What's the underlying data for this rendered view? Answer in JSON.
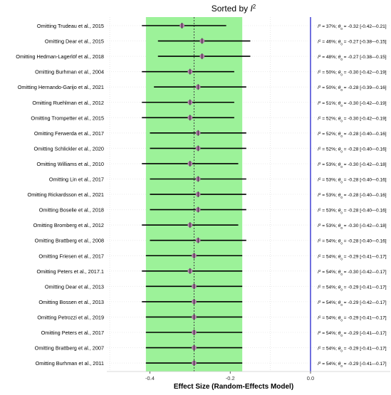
{
  "chart_data": {
    "type": "forest",
    "title": "Sorted by",
    "title_symbol": "I",
    "title_superscript": "2",
    "xlabel": "Effect Size (Random-Effects Model)",
    "xlim": [
      -0.5,
      0.02
    ],
    "xticks": [
      -0.4,
      -0.2,
      0.0
    ],
    "xtick_labels": [
      "-0.4",
      "-0.2",
      "0.0"
    ],
    "pooled_estimate": -0.29,
    "pooled_ci": [
      -0.41,
      -0.17
    ],
    "reference_line": 0.0,
    "colors": {
      "ci_band": "#9cf299",
      "reference_line": "#2222cc",
      "pooled_line": "#444444",
      "point": "#b07aa8",
      "whisker": "#000000"
    },
    "rows": [
      {
        "label": "Omitting Trudeau et al., 2015",
        "i2": "37%",
        "est": -0.32,
        "lo": -0.42,
        "hi": -0.21,
        "est_text": "-0.32 [-0.42–-0.21]"
      },
      {
        "label": "Omitting Dear et al., 2015",
        "i2": "46%",
        "est": -0.27,
        "lo": -0.38,
        "hi": -0.15,
        "est_text": "-0.27 [-0.38–-0.15]"
      },
      {
        "label": "Omitting Hedman-Lagerlöf et al., 2018",
        "i2": "48%",
        "est": -0.27,
        "lo": -0.38,
        "hi": -0.15,
        "est_text": "-0.27 [-0.38–-0.15]"
      },
      {
        "label": "Omitting Burhman et al., 2004",
        "i2": "50%",
        "est": -0.3,
        "lo": -0.42,
        "hi": -0.19,
        "est_text": "-0.30 [-0.42–-0.19]"
      },
      {
        "label": "Omitting Hernando-Garijo et al., 2021",
        "i2": "50%",
        "est": -0.28,
        "lo": -0.39,
        "hi": -0.16,
        "est_text": "-0.28 [-0.39–-0.16]"
      },
      {
        "label": "Omitting Ruehlman et al., 2012",
        "i2": "51%",
        "est": -0.3,
        "lo": -0.42,
        "hi": -0.19,
        "est_text": "-0.30 [-0.42–-0.19]"
      },
      {
        "label": "Omitting Trompetter et al., 2015",
        "i2": "52%",
        "est": -0.3,
        "lo": -0.42,
        "hi": -0.19,
        "est_text": "-0.30 [-0.42–-0.19]"
      },
      {
        "label": "Omitting Ferwerda et al., 2017",
        "i2": "52%",
        "est": -0.28,
        "lo": -0.4,
        "hi": -0.16,
        "est_text": "-0.28 [-0.40–-0.16]"
      },
      {
        "label": "Omitting Schlickler et al., 2020",
        "i2": "52%",
        "est": -0.28,
        "lo": -0.4,
        "hi": -0.16,
        "est_text": "-0.28 [-0.40–-0.16]"
      },
      {
        "label": "Omitting Williams et al., 2010",
        "i2": "53%",
        "est": -0.3,
        "lo": -0.42,
        "hi": -0.18,
        "est_text": "-0.30 [-0.42–-0.18]"
      },
      {
        "label": "Omitting Lin et al., 2017",
        "i2": "53%",
        "est": -0.28,
        "lo": -0.4,
        "hi": -0.16,
        "est_text": "-0.28 [-0.40–-0.16]"
      },
      {
        "label": "Omitting Rickardsson et al., 2021",
        "i2": "53%",
        "est": -0.28,
        "lo": -0.4,
        "hi": -0.16,
        "est_text": "-0.28 [-0.40–-0.16]"
      },
      {
        "label": "Omitting Boselie et al., 2018",
        "i2": "53%",
        "est": -0.28,
        "lo": -0.4,
        "hi": -0.16,
        "est_text": "-0.28 [-0.40–-0.16]"
      },
      {
        "label": "Omitting Bromberg et al., 2012",
        "i2": "53%",
        "est": -0.3,
        "lo": -0.42,
        "hi": -0.18,
        "est_text": "-0.30 [-0.42–-0.18]"
      },
      {
        "label": "Omitting Brattberg et al., 2008",
        "i2": "54%",
        "est": -0.28,
        "lo": -0.4,
        "hi": -0.16,
        "est_text": "-0.28 [-0.40–-0.16]"
      },
      {
        "label": "Omitting Friesen et al., 2017",
        "i2": "54%",
        "est": -0.29,
        "lo": -0.41,
        "hi": -0.17,
        "est_text": "-0.29 [-0.41–-0.17]"
      },
      {
        "label": "Omitting Peters et al., 2017.1",
        "i2": "54%",
        "est": -0.3,
        "lo": -0.42,
        "hi": -0.17,
        "est_text": "-0.30 [-0.42–-0.17]"
      },
      {
        "label": "Omitting Dear et al., 2013",
        "i2": "54%",
        "est": -0.29,
        "lo": -0.41,
        "hi": -0.17,
        "est_text": "-0.29 [-0.41–-0.17]"
      },
      {
        "label": "Omitting Bossen et al., 2013",
        "i2": "54%",
        "est": -0.29,
        "lo": -0.42,
        "hi": -0.17,
        "est_text": "-0.29 [-0.42–-0.17]"
      },
      {
        "label": "Omitting Petrozzi et al., 2019",
        "i2": "54%",
        "est": -0.29,
        "lo": -0.41,
        "hi": -0.17,
        "est_text": "-0.29 [-0.41–-0.17]"
      },
      {
        "label": "Omitting Peters et al., 2017",
        "i2": "54%",
        "est": -0.29,
        "lo": -0.41,
        "hi": -0.17,
        "est_text": "-0.29 [-0.41–-0.17]"
      },
      {
        "label": "Omitting Brattberg et al., 2007",
        "i2": "54%",
        "est": -0.29,
        "lo": -0.41,
        "hi": -0.17,
        "est_text": "-0.29 [-0.41–-0.17]"
      },
      {
        "label": "Omitting Burhman et al., 2011",
        "i2": "54%",
        "est": -0.29,
        "lo": -0.41,
        "hi": -0.17,
        "est_text": "-0.29 [-0.41–-0.17]"
      }
    ],
    "annotation_labels": {
      "i2_symbol": "I",
      "i2_sup": "2",
      "theta_symbol": "θ",
      "theta_sub": "0",
      "sep": "; "
    },
    "grid": true
  }
}
